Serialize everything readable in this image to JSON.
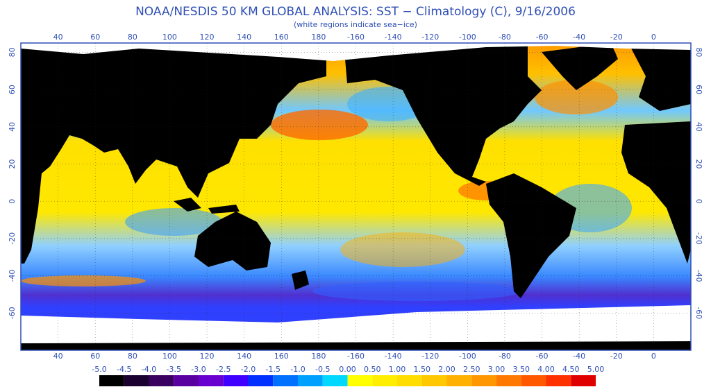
{
  "header": {
    "title": "NOAA/NESDIS 50 KM GLOBAL ANALYSIS: SST − Climatology (C), 9/16/2006",
    "subtitle": "(white regions indicate sea−ice)"
  },
  "map": {
    "xlim": [
      20,
      380
    ],
    "ylim": [
      -80,
      85
    ],
    "xticks": [
      40,
      60,
      80,
      100,
      120,
      140,
      160,
      180,
      -160,
      -140,
      -120,
      -100,
      -80,
      -60,
      -40,
      -20,
      0
    ],
    "yticks": [
      80,
      60,
      40,
      20,
      0,
      -20,
      -40,
      -60
    ],
    "grid": true
  },
  "colorbar": {
    "ticks": [
      {
        "value": -5,
        "label": "-5.0"
      },
      {
        "value": -4.5,
        "label": "-4.5"
      },
      {
        "value": -4,
        "label": "-4.0"
      },
      {
        "value": -3.5,
        "label": "-3.5"
      },
      {
        "value": -3,
        "label": "-3.0"
      },
      {
        "value": -2.5,
        "label": "-2.5"
      },
      {
        "value": -2,
        "label": "-2.0"
      },
      {
        "value": -1.5,
        "label": "-1.5"
      },
      {
        "value": -1,
        "label": "-1.0"
      },
      {
        "value": -0.5,
        "label": "-0.5"
      },
      {
        "value": 0,
        "label": "0.00"
      },
      {
        "value": 0.5,
        "label": "0.50"
      },
      {
        "value": 1,
        "label": "1.00"
      },
      {
        "value": 1.5,
        "label": "1.50"
      },
      {
        "value": 2,
        "label": "2.00"
      },
      {
        "value": 2.5,
        "label": "2.50"
      },
      {
        "value": 3,
        "label": "3.00"
      },
      {
        "value": 3.5,
        "label": "3.50"
      },
      {
        "value": 4,
        "label": "4.00"
      },
      {
        "value": 4.5,
        "label": "4.50"
      },
      {
        "value": 5,
        "label": "5.00"
      }
    ],
    "colors": [
      "#000000",
      "#1a0030",
      "#3a0060",
      "#5a00a0",
      "#6a00d0",
      "#4000ff",
      "#0030ff",
      "#0070ff",
      "#00a0ff",
      "#00d8ff",
      "#ffff00",
      "#ffee00",
      "#ffdd00",
      "#ffc800",
      "#ffb000",
      "#ff9800",
      "#ff7800",
      "#ff5800",
      "#ff3000",
      "#e00000"
    ]
  }
}
